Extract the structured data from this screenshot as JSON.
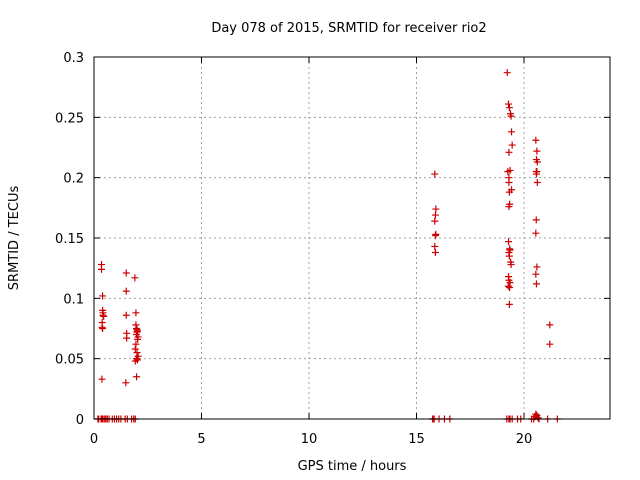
{
  "chart_data": {
    "type": "scatter",
    "title": "Day 078 of 2015, SRMTID for receiver rio2",
    "xlabel": "GPS time / hours",
    "ylabel": "SRMTID / TECUs",
    "xlim": [
      0,
      24
    ],
    "ylim": [
      0,
      0.3
    ],
    "xticks": [
      0,
      5,
      10,
      15,
      20
    ],
    "xtick_labels": [
      "0",
      "5",
      "10",
      "15",
      "20"
    ],
    "yticks": [
      0,
      0.05,
      0.1,
      0.15,
      0.2,
      0.25,
      0.3
    ],
    "ytick_labels": [
      "0",
      "0.05",
      "0.1",
      "0.15",
      "0.2",
      "0.25",
      "0.3"
    ],
    "grid": true,
    "marker": "plus",
    "color": "#cc0000",
    "series": [
      {
        "x": [
          0.18,
          0.22,
          0.33,
          0.37,
          0.42,
          0.5,
          0.55,
          0.62,
          0.7,
          0.85,
          0.95,
          1.05,
          1.15,
          1.25,
          1.45,
          1.55,
          1.75,
          1.85,
          1.92,
          0.35,
          0.35,
          0.4,
          0.4,
          0.42,
          0.45,
          0.38,
          0.38,
          0.4,
          0.42,
          0.37,
          1.5,
          1.5,
          1.5,
          1.52,
          1.52,
          1.48,
          1.9,
          1.95,
          1.95,
          1.98,
          2.0,
          2.02,
          2.0,
          1.97,
          2.05,
          2.03,
          1.95,
          1.92,
          2.0,
          2.05,
          1.98,
          2.02,
          1.92,
          1.98,
          15.75,
          15.8,
          15.85,
          15.9,
          15.88,
          15.85,
          15.9,
          15.88,
          15.85,
          15.88,
          15.82,
          16.05,
          16.3,
          16.55,
          19.2,
          19.3,
          19.35,
          19.45,
          19.7,
          19.85,
          19.22,
          19.28,
          19.32,
          19.37,
          19.4,
          19.42,
          19.45,
          19.3,
          19.35,
          19.25,
          19.3,
          19.42,
          19.33,
          19.28,
          19.35,
          19.3,
          19.32,
          19.4,
          19.28,
          19.35,
          19.27,
          19.33,
          19.32,
          19.3,
          19.32,
          19.3,
          19.33,
          19.38,
          19.3,
          20.35,
          20.45,
          20.5,
          20.55,
          20.6,
          20.65,
          20.7,
          20.55,
          20.6,
          20.58,
          20.62,
          20.6,
          20.58,
          20.62,
          20.57,
          20.55,
          20.6,
          20.58,
          20.57,
          20.55,
          20.53,
          21.1,
          21.2,
          21.2,
          21.55
        ],
        "y": [
          0,
          0,
          0,
          0,
          0,
          0,
          0,
          0,
          0,
          0,
          0,
          0,
          0,
          0,
          0,
          0,
          0,
          0,
          0,
          0.128,
          0.124,
          0.102,
          0.09,
          0.088,
          0.085,
          0.08,
          0.076,
          0.075,
          0.086,
          0.033,
          0.121,
          0.106,
          0.086,
          0.071,
          0.067,
          0.03,
          0.117,
          0.088,
          0.078,
          0.075,
          0.074,
          0.073,
          0.072,
          0.07,
          0.068,
          0.066,
          0.062,
          0.058,
          0.055,
          0.052,
          0.05,
          0.049,
          0.048,
          0.035,
          0,
          0,
          0.203,
          0.174,
          0.169,
          0.164,
          0.153,
          0.152,
          0.143,
          0.138,
          0,
          0,
          0,
          0,
          0,
          0,
          0,
          0,
          0,
          0,
          0.287,
          0.261,
          0.258,
          0.253,
          0.251,
          0.238,
          0.227,
          0.221,
          0.206,
          0.205,
          0.196,
          0.19,
          0.178,
          0.147,
          0.14,
          0.138,
          0.135,
          0.128,
          0.118,
          0.113,
          0.11,
          0.109,
          0.095,
          0.2,
          0.188,
          0.176,
          0.141,
          0.13,
          0.115,
          0,
          0,
          0.002,
          0.004,
          0.003,
          0.001,
          0,
          0.231,
          0.222,
          0.215,
          0.213,
          0.205,
          0.203,
          0.196,
          0.165,
          0.154,
          0.126,
          0.112,
          0.205,
          0.12,
          0.002,
          0,
          0.078,
          0.062,
          0
        ]
      }
    ]
  }
}
